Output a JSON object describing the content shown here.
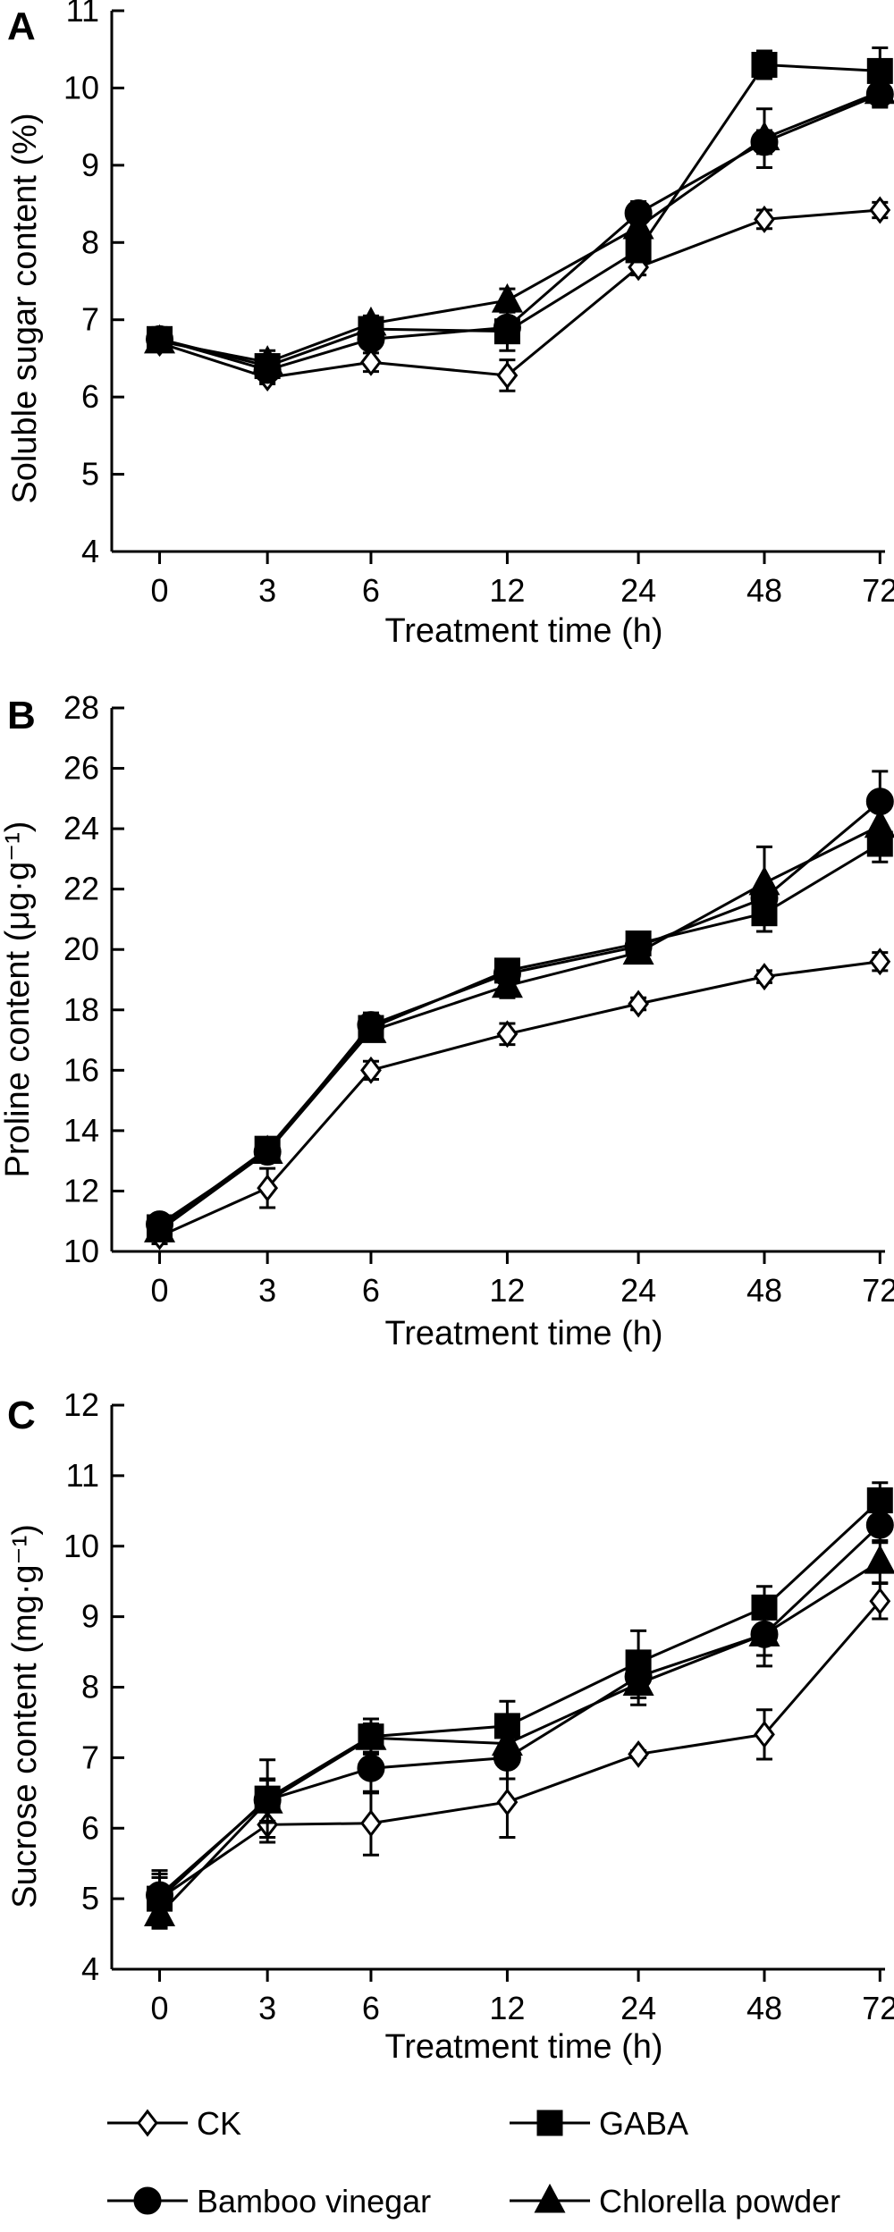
{
  "colors": {
    "ink": "#000000",
    "background": "#ffffff",
    "open_marker": "#ffffff"
  },
  "legend": {
    "placement": "bottom",
    "items": [
      {
        "label": "CK",
        "marker": "diamond-open"
      },
      {
        "label": "GABA",
        "marker": "square-filled"
      },
      {
        "label": "Bamboo vinegar",
        "marker": "circle-filled"
      },
      {
        "label": "Chlorella powder",
        "marker": "triangle-filled"
      }
    ]
  },
  "chart_data": [
    {
      "type": "line",
      "panel_label": "A",
      "xlabel": "Treatment time (h)",
      "ylabel": "Soluble sugar content (%)",
      "x": [
        "0",
        "3",
        "6",
        "12",
        "24",
        "48",
        "72"
      ],
      "ylim": [
        4,
        11
      ],
      "yticks": [
        4,
        5,
        6,
        7,
        8,
        9,
        10,
        11
      ],
      "series": [
        {
          "name": "CK",
          "marker": "diamond-open",
          "values": [
            6.7,
            6.25,
            6.45,
            6.28,
            7.68,
            8.3,
            8.42
          ],
          "errors": [
            0.1,
            0.08,
            0.12,
            0.2,
            0.1,
            0.12,
            0.1
          ]
        },
        {
          "name": "GABA",
          "marker": "square-filled",
          "values": [
            6.75,
            6.4,
            6.88,
            6.85,
            7.9,
            10.3,
            10.22
          ],
          "errors": [
            0.15,
            0.2,
            0.1,
            0.25,
            0.15,
            0.18,
            0.3
          ]
        },
        {
          "name": "Bamboo vinegar",
          "marker": "circle-filled",
          "values": [
            6.75,
            6.35,
            6.75,
            6.9,
            8.38,
            9.3,
            9.92
          ],
          "errors": [
            0.1,
            0.1,
            0.1,
            0.1,
            0.15,
            0.15,
            0.15
          ]
        },
        {
          "name": "Chlorella powder",
          "marker": "triangle-filled",
          "values": [
            6.72,
            6.45,
            6.95,
            7.25,
            8.2,
            9.35,
            9.95
          ],
          "errors": [
            0.1,
            0.1,
            0.1,
            0.15,
            0.18,
            0.38,
            0.2
          ]
        }
      ]
    },
    {
      "type": "line",
      "panel_label": "B",
      "xlabel": "Treatment time (h)",
      "ylabel": "Proline content (μg·g⁻¹)",
      "x": [
        "0",
        "3",
        "6",
        "12",
        "24",
        "48",
        "72"
      ],
      "ylim": [
        10,
        28
      ],
      "yticks": [
        10,
        12,
        14,
        16,
        18,
        20,
        22,
        24,
        26,
        28
      ],
      "series": [
        {
          "name": "CK",
          "marker": "diamond-open",
          "values": [
            10.5,
            12.1,
            16.0,
            17.2,
            18.2,
            19.1,
            19.6
          ],
          "errors": [
            0.25,
            0.65,
            0.3,
            0.35,
            0.2,
            0.2,
            0.3
          ]
        },
        {
          "name": "GABA",
          "marker": "square-filled",
          "values": [
            10.8,
            13.4,
            17.4,
            19.3,
            20.2,
            21.2,
            23.5
          ],
          "errors": [
            0.4,
            0.35,
            0.4,
            0.3,
            0.3,
            0.6,
            0.6
          ]
        },
        {
          "name": "Bamboo vinegar",
          "marker": "circle-filled",
          "values": [
            10.9,
            13.3,
            17.5,
            19.2,
            20.1,
            21.7,
            24.9
          ],
          "errors": [
            0.3,
            0.3,
            0.4,
            0.3,
            0.3,
            0.4,
            1.0
          ]
        },
        {
          "name": "Chlorella powder",
          "marker": "triangle-filled",
          "values": [
            10.7,
            13.3,
            17.3,
            18.8,
            19.9,
            22.2,
            24.1
          ],
          "errors": [
            0.3,
            0.3,
            0.3,
            0.4,
            0.3,
            1.2,
            0.6
          ]
        }
      ]
    },
    {
      "type": "line",
      "panel_label": "C",
      "xlabel": "Treatment time (h)",
      "ylabel": "Sucrose content (mg·g⁻¹)",
      "x": [
        "0",
        "3",
        "6",
        "12",
        "24",
        "48",
        "72"
      ],
      "ylim": [
        4,
        12
      ],
      "yticks": [
        4,
        5,
        6,
        7,
        8,
        9,
        10,
        11,
        12
      ],
      "series": [
        {
          "name": "CK",
          "marker": "diamond-open",
          "values": [
            5.0,
            6.05,
            6.07,
            6.37,
            7.05,
            7.33,
            9.22
          ],
          "errors": [
            0.4,
            0.25,
            0.45,
            0.5,
            0.05,
            0.35,
            0.25
          ]
        },
        {
          "name": "GABA",
          "marker": "square-filled",
          "values": [
            5.0,
            6.42,
            7.3,
            7.45,
            8.35,
            9.13,
            10.65
          ],
          "errors": [
            0.3,
            0.55,
            0.25,
            0.35,
            0.45,
            0.3,
            0.25
          ]
        },
        {
          "name": "Bamboo vinegar",
          "marker": "circle-filled",
          "values": [
            5.05,
            6.4,
            6.85,
            7.0,
            8.15,
            8.75,
            10.3
          ],
          "errors": [
            0.3,
            0.3,
            0.35,
            0.3,
            0.3,
            0.3,
            0.25
          ]
        },
        {
          "name": "Chlorella powder",
          "marker": "triangle-filled",
          "values": [
            4.78,
            6.38,
            7.28,
            7.2,
            8.05,
            8.75,
            9.78
          ],
          "errors": [
            0.2,
            0.3,
            0.2,
            0.3,
            0.3,
            0.45,
            0.3
          ]
        }
      ]
    }
  ]
}
